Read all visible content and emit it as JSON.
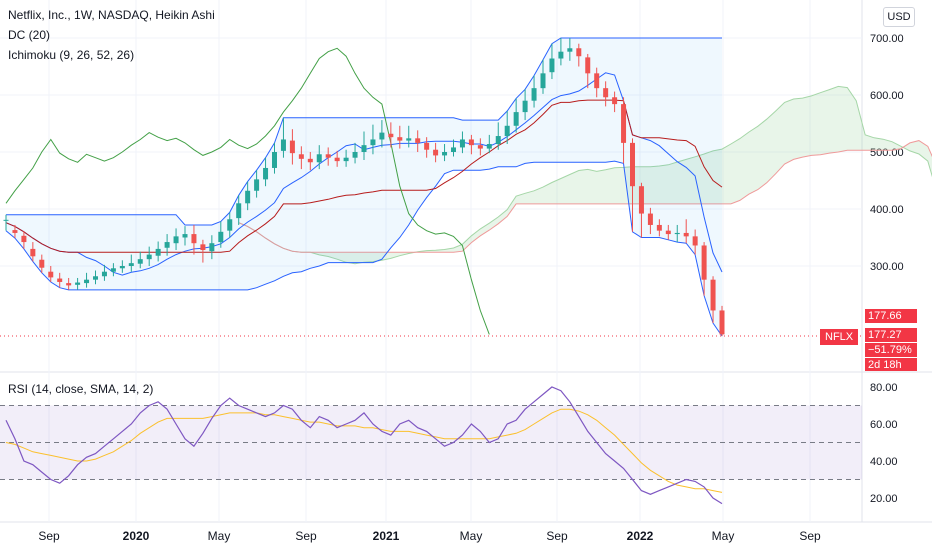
{
  "header": {
    "title": "Netflix, Inc., 1W, NASDAQ, Heikin Ashi",
    "indicator_dc": "DC (20)",
    "indicator_ichimoku": "Ichimoku (9, 26, 52, 26)",
    "currency_button": "USD"
  },
  "price_scale": {
    "ticks": [
      "700.00",
      "600.00",
      "500.00",
      "400.00",
      "300.00"
    ],
    "tick_values": [
      700,
      600,
      500,
      400,
      300
    ]
  },
  "rsi_panel": {
    "label": "RSI (14, close, SMA, 14, 2)",
    "ticks": [
      "80.00",
      "60.00",
      "40.00",
      "20.00"
    ],
    "tick_values": [
      80,
      60,
      40,
      20
    ]
  },
  "time_axis": {
    "labels": [
      "Sep",
      "2020",
      "May",
      "Sep",
      "2021",
      "May",
      "Sep",
      "2022",
      "May",
      "Sep"
    ]
  },
  "price_badge": {
    "ticker": "NFLX",
    "level_label": "177.66",
    "price": "177.27",
    "change": "−51.79%",
    "countdown": "2d 18h"
  },
  "colors": {
    "up": "#26a69a",
    "down": "#ef5350",
    "donchian": "#2962ff",
    "tenkan": "#2962ff",
    "kijun": "#b71c1c",
    "chikou": "#43a047",
    "span_a": "#a5d6a7",
    "span_b": "#ef9a9a",
    "rsi_line": "#7e57c2",
    "rsi_ma": "#fbc02d",
    "badge": "#f23645"
  },
  "chart_data": {
    "type": "candlestick",
    "title": "Netflix, Inc., 1W, NASDAQ, Heikin Ashi",
    "ylim": [
      150,
      730
    ],
    "rsi_ylim": [
      10,
      90
    ],
    "rsi_bands": [
      30,
      50,
      70
    ],
    "last_price": 177.27,
    "series": [
      {
        "name": "Heikin Ashi candles",
        "points": [
          [
            0,
            380,
            381,
            390,
            362
          ],
          [
            1,
            363,
            358,
            372,
            349
          ],
          [
            2,
            353,
            342,
            361,
            330
          ],
          [
            3,
            330,
            317,
            342,
            308
          ],
          [
            4,
            311,
            297,
            320,
            288
          ],
          [
            5,
            290,
            280,
            300,
            272
          ],
          [
            6,
            278,
            272,
            288,
            262
          ],
          [
            7,
            270,
            266,
            279,
            258
          ],
          [
            8,
            267,
            271,
            279,
            258
          ],
          [
            9,
            270,
            276,
            288,
            262
          ],
          [
            10,
            276,
            282,
            292,
            268
          ],
          [
            11,
            282,
            290,
            302,
            274
          ],
          [
            12,
            290,
            296,
            305,
            282
          ],
          [
            13,
            296,
            300,
            310,
            288
          ],
          [
            14,
            300,
            305,
            320,
            290
          ],
          [
            15,
            304,
            312,
            325,
            296
          ],
          [
            16,
            312,
            320,
            334,
            300
          ],
          [
            17,
            318,
            330,
            343,
            308
          ],
          [
            18,
            332,
            342,
            356,
            318
          ],
          [
            19,
            340,
            352,
            366,
            328
          ],
          [
            20,
            350,
            356,
            370,
            336
          ],
          [
            21,
            356,
            340,
            372,
            320
          ],
          [
            22,
            338,
            328,
            346,
            306
          ],
          [
            23,
            326,
            340,
            354,
            312
          ],
          [
            24,
            342,
            360,
            378,
            332
          ],
          [
            25,
            362,
            382,
            394,
            350
          ],
          [
            26,
            384,
            410,
            424,
            372
          ],
          [
            27,
            410,
            432,
            448,
            398
          ],
          [
            28,
            432,
            452,
            468,
            420
          ],
          [
            29,
            452,
            472,
            490,
            440
          ],
          [
            30,
            472,
            500,
            516,
            462
          ],
          [
            31,
            502,
            522,
            560,
            490
          ],
          [
            32,
            520,
            498,
            540,
            478
          ],
          [
            33,
            496,
            488,
            510,
            470
          ],
          [
            34,
            488,
            482,
            500,
            468
          ],
          [
            35,
            482,
            496,
            512,
            470
          ],
          [
            36,
            496,
            490,
            508,
            476
          ],
          [
            37,
            490,
            484,
            502,
            474
          ],
          [
            38,
            484,
            490,
            504,
            474
          ],
          [
            39,
            490,
            500,
            516,
            480
          ],
          [
            40,
            500,
            512,
            536,
            486
          ],
          [
            41,
            512,
            522,
            548,
            496
          ],
          [
            42,
            522,
            534,
            556,
            508
          ],
          [
            43,
            532,
            526,
            552,
            508
          ],
          [
            44,
            526,
            520,
            546,
            506
          ],
          [
            45,
            520,
            524,
            546,
            508
          ],
          [
            46,
            524,
            516,
            538,
            500
          ],
          [
            47,
            516,
            504,
            526,
            490
          ],
          [
            48,
            504,
            494,
            516,
            482
          ],
          [
            49,
            494,
            500,
            514,
            484
          ],
          [
            50,
            500,
            508,
            522,
            492
          ],
          [
            51,
            508,
            522,
            536,
            498
          ],
          [
            52,
            522,
            512,
            530,
            496
          ],
          [
            53,
            512,
            506,
            524,
            494
          ],
          [
            54,
            506,
            514,
            530,
            498
          ],
          [
            55,
            514,
            528,
            552,
            504
          ],
          [
            56,
            528,
            546,
            572,
            514
          ],
          [
            57,
            546,
            570,
            594,
            534
          ],
          [
            58,
            570,
            590,
            610,
            556
          ],
          [
            59,
            590,
            612,
            634,
            578
          ],
          [
            60,
            612,
            638,
            662,
            602
          ],
          [
            61,
            640,
            664,
            690,
            628
          ],
          [
            62,
            664,
            676,
            700,
            652
          ],
          [
            63,
            676,
            682,
            700,
            660
          ],
          [
            64,
            682,
            668,
            690,
            650
          ],
          [
            65,
            666,
            638,
            672,
            612
          ],
          [
            66,
            638,
            612,
            648,
            596
          ],
          [
            67,
            612,
            596,
            624,
            580
          ],
          [
            68,
            596,
            584,
            606,
            570
          ],
          [
            69,
            584,
            516,
            596,
            480
          ],
          [
            70,
            516,
            440,
            524,
            360
          ],
          [
            71,
            440,
            392,
            446,
            350
          ],
          [
            72,
            392,
            372,
            402,
            356
          ],
          [
            73,
            372,
            362,
            382,
            352
          ],
          [
            74,
            362,
            356,
            372,
            346
          ],
          [
            75,
            356,
            358,
            372,
            342
          ],
          [
            76,
            358,
            352,
            382,
            340
          ],
          [
            77,
            352,
            336,
            364,
            320
          ],
          [
            78,
            336,
            276,
            342,
            248
          ],
          [
            79,
            276,
            222,
            282,
            200
          ],
          [
            80,
            222,
            180,
            230,
            177
          ]
        ]
      }
    ],
    "rsi": [
      62,
      52,
      40,
      38,
      34,
      30,
      28,
      32,
      38,
      42,
      44,
      48,
      52,
      56,
      60,
      66,
      70,
      72,
      68,
      60,
      52,
      48,
      55,
      63,
      70,
      74,
      70,
      68,
      66,
      64,
      66,
      70,
      68,
      62,
      58,
      64,
      62,
      58,
      60,
      62,
      66,
      60,
      56,
      54,
      60,
      62,
      58,
      56,
      52,
      48,
      50,
      54,
      60,
      56,
      50,
      52,
      60,
      62,
      68,
      72,
      76,
      80,
      78,
      72,
      64,
      56,
      50,
      44,
      40,
      36,
      30,
      24,
      22,
      24,
      26,
      28,
      30,
      29,
      26,
      20,
      17
    ],
    "rsi_ma": [
      50,
      49,
      47,
      45,
      44,
      43,
      42,
      41,
      40,
      40,
      41,
      43,
      45,
      48,
      51,
      55,
      58,
      61,
      63,
      63,
      63,
      63,
      63,
      64,
      65,
      66,
      66,
      66,
      66,
      65,
      65,
      64,
      63,
      62,
      61,
      61,
      60,
      59,
      59,
      59,
      58,
      58,
      57,
      56,
      56,
      56,
      55,
      54,
      53,
      52,
      52,
      52,
      52,
      52,
      52,
      53,
      54,
      55,
      57,
      60,
      63,
      66,
      68,
      68,
      67,
      65,
      62,
      58,
      54,
      49,
      44,
      39,
      35,
      32,
      29,
      27,
      26,
      25,
      25,
      24,
      23
    ]
  }
}
